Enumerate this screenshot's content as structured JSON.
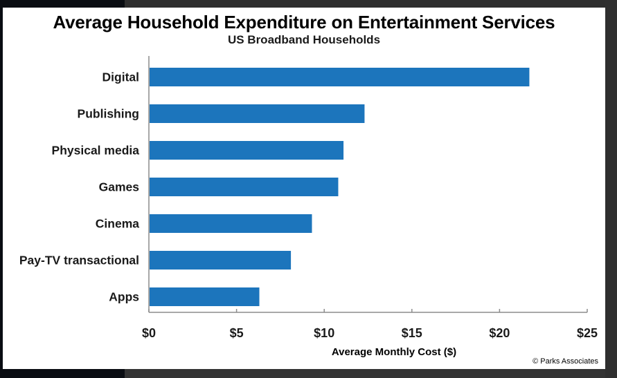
{
  "chart_data": {
    "type": "bar",
    "orientation": "horizontal",
    "title": "Average Household Expenditure on Entertainment Services",
    "subtitle": "US Broadband Households",
    "categories": [
      "Digital",
      "Publishing",
      "Physical media",
      "Games",
      "Cinema",
      "Pay-TV transactional",
      "Apps"
    ],
    "values": [
      21.7,
      12.3,
      11.1,
      10.8,
      9.3,
      8.1,
      6.3
    ],
    "xlabel": "Average Monthly Cost ($)",
    "ylabel": "",
    "xlim": [
      0,
      25
    ],
    "ticks": [
      0,
      5,
      10,
      15,
      20,
      25
    ],
    "tick_labels": [
      "$0",
      "$5",
      "$10",
      "$15",
      "$20",
      "$25"
    ],
    "grid": false,
    "legend": "none",
    "bar_color": "#1c75bc",
    "credit": "© Parks  Associates"
  }
}
